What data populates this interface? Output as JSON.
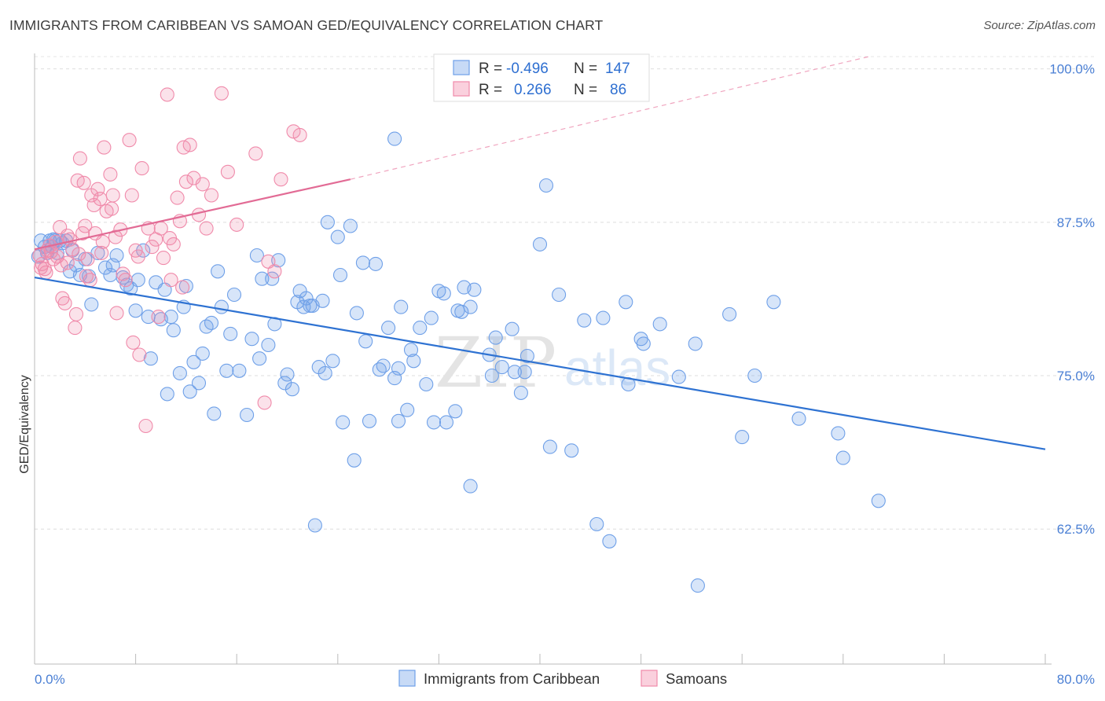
{
  "header": {
    "title": "IMMIGRANTS FROM CARIBBEAN VS SAMOAN GED/EQUIVALENCY CORRELATION CHART",
    "source": "Source: ZipAtlas.com"
  },
  "watermark": {
    "zip": "ZIP",
    "atlas": "atlas"
  },
  "legend_top": {
    "rows": [
      {
        "r_label": "R =",
        "r_value": "-0.496",
        "n_label": "N =",
        "n_value": "147",
        "color": "#6fa0e8"
      },
      {
        "r_label": "R =",
        "r_value": "0.266",
        "n_label": "N =",
        "n_value": "86",
        "color": "#f08aaa"
      }
    ]
  },
  "legend_bottom": {
    "items": [
      {
        "label": "Immigrants from Caribbean",
        "color": "#6fa0e8"
      },
      {
        "label": "Samoans",
        "color": "#f08aaa"
      }
    ]
  },
  "chart_data": {
    "type": "scatter",
    "ylabel": "GED/Equivalency",
    "xlim": [
      0,
      80
    ],
    "ylim": [
      51.5,
      101
    ],
    "y_ticks": [
      {
        "value": 100,
        "label": "100.0%"
      },
      {
        "value": 87.5,
        "label": "87.5%"
      },
      {
        "value": 75,
        "label": "75.0%"
      },
      {
        "value": 62.5,
        "label": "62.5%"
      }
    ],
    "x_tick_labels": [
      {
        "value": 0,
        "label": "0.0%"
      },
      {
        "value": 80,
        "label": "80.0%"
      }
    ],
    "x_minor_ticks": [
      8,
      16,
      24,
      32,
      40,
      48,
      56,
      64,
      72
    ],
    "grid": "horizontal-dashed",
    "colors": {
      "blue": "#6fa0e8",
      "pink": "#f08aaa",
      "blue_line": "#2e72d2",
      "pink_line": "#e26b95"
    },
    "series": [
      {
        "name": "Immigrants from Caribbean",
        "trend": {
          "x0": 0,
          "y0": 83,
          "x1": 80,
          "y1": 69
        },
        "points": [
          [
            0.5,
            86
          ],
          [
            0.8,
            85.5
          ],
          [
            1,
            85
          ],
          [
            1.2,
            86
          ],
          [
            1.4,
            85.5
          ],
          [
            1.6,
            86
          ],
          [
            1.8,
            85
          ],
          [
            2,
            86
          ],
          [
            2.2,
            85.8
          ],
          [
            2.5,
            86
          ],
          [
            3,
            85.2
          ],
          [
            2.8,
            83.5
          ],
          [
            3.3,
            84
          ],
          [
            3.6,
            83.2
          ],
          [
            4,
            84.5
          ],
          [
            4.3,
            83.1
          ],
          [
            4.5,
            80.8
          ],
          [
            5,
            85
          ],
          [
            5.6,
            83.8
          ],
          [
            6,
            83.2
          ],
          [
            6.2,
            84
          ],
          [
            6.5,
            84.8
          ],
          [
            7,
            83
          ],
          [
            7.3,
            82.4
          ],
          [
            7.6,
            82.1
          ],
          [
            8,
            80.3
          ],
          [
            8.2,
            82.8
          ],
          [
            8.6,
            85.2
          ],
          [
            9,
            79.8
          ],
          [
            9.2,
            76.4
          ],
          [
            9.6,
            82.6
          ],
          [
            10,
            79.6
          ],
          [
            10.3,
            82
          ],
          [
            10.5,
            73.5
          ],
          [
            10.8,
            79.8
          ],
          [
            11,
            78.7
          ],
          [
            11.5,
            75.2
          ],
          [
            11.8,
            80.6
          ],
          [
            12,
            82.3
          ],
          [
            12.3,
            73.7
          ],
          [
            12.6,
            76.1
          ],
          [
            13,
            74.4
          ],
          [
            13.3,
            76.8
          ],
          [
            13.6,
            79
          ],
          [
            14,
            79.3
          ],
          [
            14.2,
            71.9
          ],
          [
            14.5,
            83.5
          ],
          [
            14.8,
            80.6
          ],
          [
            15.2,
            75.4
          ],
          [
            15.5,
            78.4
          ],
          [
            15.8,
            81.6
          ],
          [
            16.2,
            75.4
          ],
          [
            16.8,
            71.8
          ],
          [
            17.2,
            78
          ],
          [
            17.6,
            84.8
          ],
          [
            17.8,
            76.4
          ],
          [
            18,
            82.9
          ],
          [
            18.8,
            82.9
          ],
          [
            18.5,
            77.5
          ],
          [
            19,
            79.2
          ],
          [
            19.3,
            84.4
          ],
          [
            19.8,
            74.4
          ],
          [
            20,
            75.1
          ],
          [
            20.4,
            73.9
          ],
          [
            20.8,
            81
          ],
          [
            21,
            81.9
          ],
          [
            21.3,
            80.6
          ],
          [
            21.5,
            81.3
          ],
          [
            21.8,
            80.7
          ],
          [
            22,
            80.7
          ],
          [
            22.2,
            62.8
          ],
          [
            22.5,
            75.7
          ],
          [
            22.8,
            81.1
          ],
          [
            23,
            75.2
          ],
          [
            23.2,
            87.5
          ],
          [
            23.6,
            76.2
          ],
          [
            24,
            86.3
          ],
          [
            24.2,
            83.2
          ],
          [
            24.4,
            71.2
          ],
          [
            25,
            87.2
          ],
          [
            25.5,
            80.1
          ],
          [
            25.3,
            68.1
          ],
          [
            26,
            84.2
          ],
          [
            26.2,
            77.8
          ],
          [
            26.5,
            71.3
          ],
          [
            27,
            84.1
          ],
          [
            27.3,
            75.5
          ],
          [
            27.6,
            75.8
          ],
          [
            28,
            78.9
          ],
          [
            28.5,
            74.8
          ],
          [
            28.8,
            71.3
          ],
          [
            28.8,
            75.6
          ],
          [
            29,
            80.6
          ],
          [
            29.5,
            72.2
          ],
          [
            29.8,
            77.1
          ],
          [
            30,
            76.2
          ],
          [
            30.5,
            78.9
          ],
          [
            31,
            74.3
          ],
          [
            31.4,
            79.7
          ],
          [
            31.6,
            71.2
          ],
          [
            32,
            81.9
          ],
          [
            32.6,
            71.2
          ],
          [
            32.4,
            81.7
          ],
          [
            33.3,
            72.1
          ],
          [
            33.8,
            80.2
          ],
          [
            33.5,
            80.3
          ],
          [
            34,
            82.2
          ],
          [
            34.5,
            80.6
          ],
          [
            34.8,
            82
          ],
          [
            36,
            76.7
          ],
          [
            36.2,
            75
          ],
          [
            36.5,
            78.1
          ],
          [
            37,
            75.7
          ],
          [
            37.8,
            78.8
          ],
          [
            38,
            75.3
          ],
          [
            38.5,
            73.6
          ],
          [
            38.8,
            75.3
          ],
          [
            39,
            76.6
          ],
          [
            40,
            85.7
          ],
          [
            40.8,
            69.2
          ],
          [
            41.5,
            81.6
          ],
          [
            42.5,
            68.9
          ],
          [
            43.5,
            79.5
          ],
          [
            44.5,
            62.9
          ],
          [
            45,
            79.7
          ],
          [
            45.5,
            61.5
          ],
          [
            46.8,
            81
          ],
          [
            47,
            74.3
          ],
          [
            48,
            78
          ],
          [
            48.2,
            77.6
          ],
          [
            49.5,
            79.2
          ],
          [
            51,
            74.9
          ],
          [
            52.3,
            77.6
          ],
          [
            52.5,
            57.9
          ],
          [
            55,
            80
          ],
          [
            56,
            70
          ],
          [
            57,
            75
          ],
          [
            58.5,
            81
          ],
          [
            60.5,
            71.5
          ],
          [
            63.6,
            70.3
          ],
          [
            64,
            68.3
          ],
          [
            66.8,
            64.8
          ],
          [
            34.5,
            66
          ],
          [
            40.5,
            90.5
          ],
          [
            28.5,
            94.3
          ],
          [
            0.3,
            84.7
          ],
          [
            1.5,
            86.1
          ]
        ]
      },
      {
        "name": "Samoans",
        "trend": {
          "x0": 0,
          "y0": 85.3,
          "x1": 25,
          "y1": 91
        },
        "trend_dashed": {
          "x0": 25,
          "y0": 91,
          "x1": 80,
          "y1": 104.4
        },
        "points": [
          [
            0.4,
            84.8
          ],
          [
            0.6,
            84.1
          ],
          [
            0.8,
            83.7
          ],
          [
            1,
            85.2
          ],
          [
            1.2,
            85.6
          ],
          [
            1.5,
            84.5
          ],
          [
            1.8,
            84.7
          ],
          [
            2,
            87.1
          ],
          [
            2.2,
            81.3
          ],
          [
            2.4,
            80.9
          ],
          [
            2.6,
            84.2
          ],
          [
            2.8,
            86.1
          ],
          [
            3,
            85.3
          ],
          [
            3.2,
            78.9
          ],
          [
            3.4,
            90.9
          ],
          [
            3.6,
            92.7
          ],
          [
            3.8,
            86.6
          ],
          [
            4,
            87.2
          ],
          [
            4.2,
            84.5
          ],
          [
            4.4,
            82.8
          ],
          [
            4.5,
            89.7
          ],
          [
            4.7,
            88.9
          ],
          [
            5,
            90.2
          ],
          [
            5.2,
            89.4
          ],
          [
            5.4,
            85.9
          ],
          [
            5.5,
            93.6
          ],
          [
            5.7,
            88.4
          ],
          [
            6,
            91.4
          ],
          [
            6.2,
            89.7
          ],
          [
            6.5,
            80.1
          ],
          [
            6.8,
            86.9
          ],
          [
            7,
            83.3
          ],
          [
            7.2,
            82.8
          ],
          [
            7.5,
            94.2
          ],
          [
            7.7,
            89.7
          ],
          [
            8,
            85.2
          ],
          [
            8.2,
            84.7
          ],
          [
            8.5,
            91.9
          ],
          [
            8.8,
            70.9
          ],
          [
            9,
            87
          ],
          [
            9.3,
            85.5
          ],
          [
            9.6,
            86.1
          ],
          [
            10,
            87
          ],
          [
            10.2,
            84.6
          ],
          [
            10.5,
            97.9
          ],
          [
            10.8,
            82.8
          ],
          [
            11,
            85.7
          ],
          [
            11.3,
            89.5
          ],
          [
            11.5,
            87.6
          ],
          [
            11.8,
            93.6
          ],
          [
            12,
            90.8
          ],
          [
            12.3,
            93.8
          ],
          [
            12.6,
            91.1
          ],
          [
            13,
            88.1
          ],
          [
            13.3,
            90.6
          ],
          [
            13.6,
            87
          ],
          [
            14,
            89.7
          ],
          [
            14.8,
            98
          ],
          [
            15.3,
            91.6
          ],
          [
            16,
            87.3
          ],
          [
            17.5,
            93.1
          ],
          [
            18.2,
            72.8
          ],
          [
            18.5,
            84.3
          ],
          [
            19,
            83.5
          ],
          [
            19.5,
            91
          ],
          [
            20.5,
            94.9
          ],
          [
            21,
            94.6
          ],
          [
            7.8,
            77.7
          ],
          [
            8.3,
            76.7
          ],
          [
            1.3,
            85.1
          ],
          [
            2.1,
            84
          ],
          [
            3.3,
            80
          ],
          [
            4.8,
            86.6
          ],
          [
            5.3,
            85
          ],
          [
            0.9,
            83.4
          ],
          [
            1.7,
            85.9
          ],
          [
            2.6,
            86.4
          ],
          [
            3.9,
            90.7
          ],
          [
            6.4,
            86.3
          ],
          [
            9.8,
            79.8
          ],
          [
            10.7,
            86.2
          ],
          [
            11.7,
            82.2
          ],
          [
            4.1,
            83.1
          ],
          [
            0.5,
            83.8
          ],
          [
            3.5,
            84.9
          ],
          [
            6.1,
            88.6
          ]
        ]
      }
    ]
  }
}
